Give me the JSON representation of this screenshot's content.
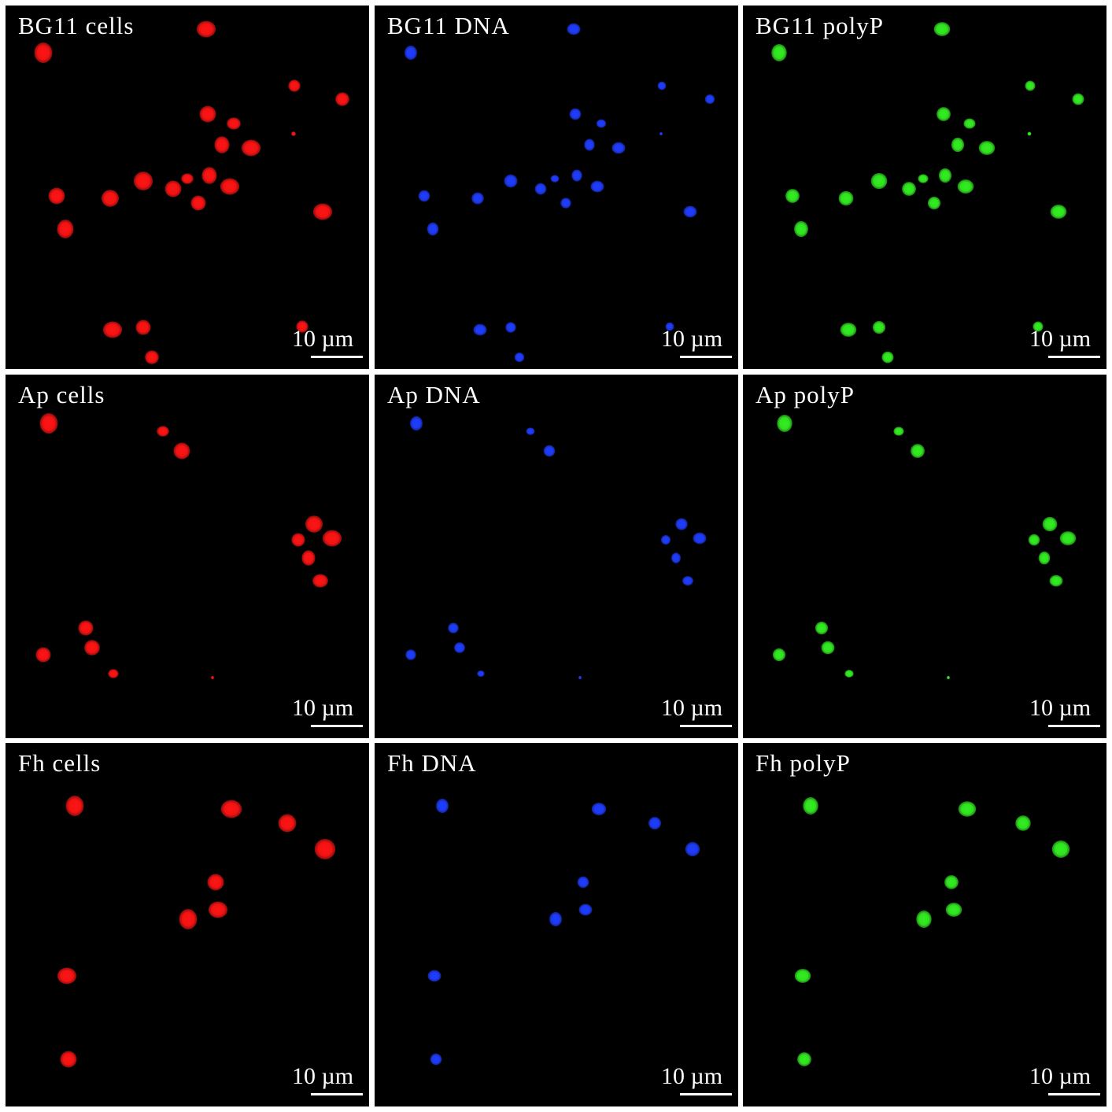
{
  "figure": {
    "scale_label": "10 µm",
    "channel_colors": {
      "cells": "#ff1414",
      "DNA": "#1f3dff",
      "polyP": "#33ee22"
    },
    "panels": [
      {
        "title": "BG11 cells",
        "channel": "cells"
      },
      {
        "title": "BG11 DNA",
        "channel": "DNA"
      },
      {
        "title": "BG11 polyP",
        "channel": "polyP"
      },
      {
        "title": "Ap cells",
        "channel": "cells"
      },
      {
        "title": "Ap DNA",
        "channel": "DNA"
      },
      {
        "title": "Ap polyP",
        "channel": "polyP"
      },
      {
        "title": "Fh cells",
        "channel": "cells"
      },
      {
        "title": "Fh DNA",
        "channel": "DNA"
      },
      {
        "title": "Fh polyP",
        "channel": "polyP"
      }
    ]
  }
}
